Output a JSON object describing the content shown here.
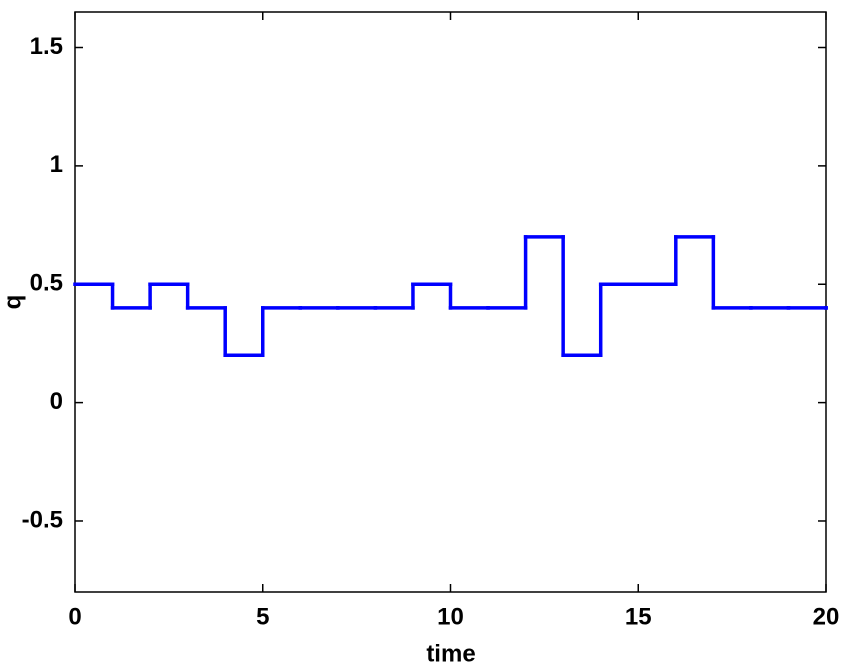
{
  "chart_data": {
    "type": "step",
    "x_label": "time",
    "y_label": "q",
    "x": [
      0,
      1,
      2,
      3,
      4,
      5,
      6,
      7,
      8,
      9,
      10,
      11,
      12,
      13,
      14,
      15,
      16,
      17,
      18,
      19,
      20
    ],
    "series": [
      {
        "color": "#0000ff",
        "values": [
          0.5,
          0.4,
          0.5,
          0.4,
          0.2,
          0.4,
          0.4,
          0.4,
          0.4,
          0.5,
          0.4,
          0.4,
          0.7,
          0.2,
          0.5,
          0.5,
          0.7,
          0.4,
          0.4,
          0.4,
          0.4
        ]
      }
    ],
    "xlim": [
      0,
      20
    ],
    "xticks": [
      0,
      5,
      10,
      15,
      20
    ],
    "ylim": [
      -0.8,
      1.65
    ],
    "yticks": [
      -0.5,
      0,
      0.5,
      1,
      1.5
    ]
  }
}
